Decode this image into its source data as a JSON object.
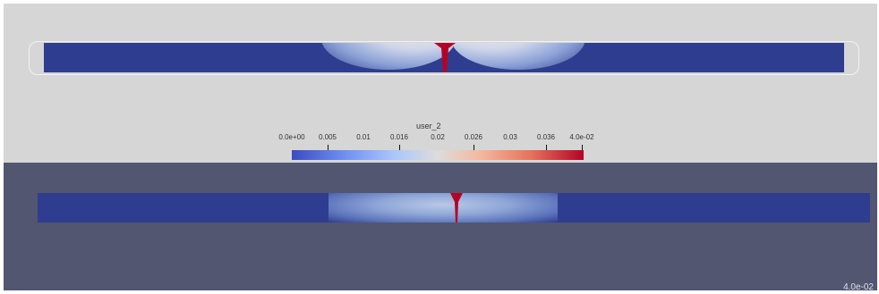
{
  "colorbar": {
    "title": "user_2",
    "ticks": [
      "0.0e+00",
      "0.005",
      "0.01",
      "0.016",
      "0.02",
      "0.026",
      "0.03",
      "0.036",
      "4.0e-02"
    ],
    "colors": [
      "#3b4cc0",
      "#dddcdc",
      "#b40426"
    ]
  },
  "colors": {
    "top_background": "#d6d6d6",
    "bottom_background": "#525670",
    "specimen_blue": "#2e3d8f",
    "crack_red": "#b40426"
  },
  "status": {
    "bottom_right_text": "4.0e-02"
  }
}
